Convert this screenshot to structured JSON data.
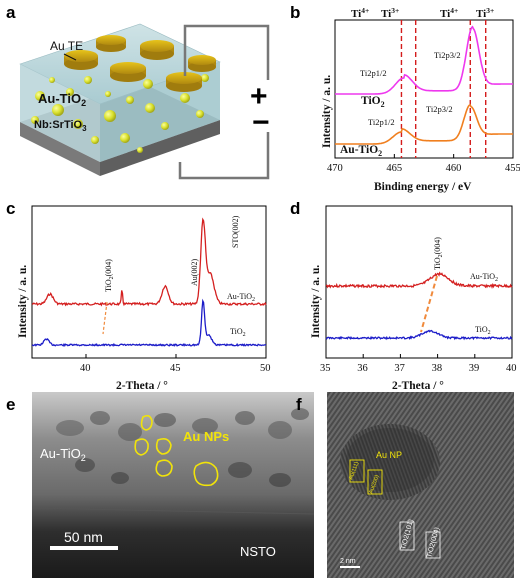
{
  "panels": {
    "a": {
      "letter": "a",
      "au_te_label": "Au TE",
      "au_tio2_label": "Au-TiO",
      "au_tio2_sub": "2",
      "substrate_label": "Nb:SrTiO",
      "substrate_sub": "3",
      "plus": "+",
      "minus": "−"
    },
    "b": {
      "letter": "b",
      "xlabel": "Binding energy / eV",
      "ylabel": "Intensity / a. u.",
      "ti_labels": [
        "Ti",
        "Ti",
        "Ti",
        "Ti"
      ],
      "ti_sup": [
        "4+",
        "3+",
        "4+",
        "3+"
      ],
      "peak_labels_top": [
        "Ti2p1/2",
        "Ti2p3/2"
      ],
      "peak_labels_bottom": [
        "Ti2p1/2",
        "Ti2p3/2"
      ],
      "series_top": "TiO",
      "series_bottom": "Au-TiO",
      "sub2": "2",
      "xticks": [
        "470",
        "465",
        "460",
        "455"
      ]
    },
    "c": {
      "letter": "c",
      "xlabel": "2-Theta / °",
      "ylabel": "Intensity / a. u.",
      "peak_tio2": "TiO",
      "peak_tio2_tail": "(004)",
      "peak_au": "Au(002)",
      "peak_sto": "STO(002)",
      "series_au": "Au-TiO",
      "series_tio2": "TiO",
      "sub2": "2",
      "xticks": [
        "40",
        "45",
        "50"
      ]
    },
    "d": {
      "letter": "d",
      "xlabel": "2-Theta / °",
      "ylabel": "Intensity / a. u.",
      "peak_tio2": "TiO",
      "peak_tio2_tail": "(004)",
      "series_au": "Au-TiO",
      "series_tio2": "TiO",
      "sub2": "2",
      "xticks": [
        "35",
        "36",
        "37",
        "38",
        "39",
        "40"
      ]
    },
    "e": {
      "letter": "e",
      "film_label": "Au-TiO",
      "sub2": "2",
      "np_label": "Au NPs",
      "scale_label": "50 nm",
      "substrate_label": "NSTO"
    },
    "f": {
      "letter": "f",
      "np_label": "Au NP",
      "scale_label": "2 nm",
      "lattice_labels": [
        "Au(111)",
        "Au(200)",
        "TiO2(101)",
        "TiO2(004)"
      ]
    }
  },
  "chart_data": [
    {
      "type": "line",
      "panel": "b",
      "xlabel": "Binding energy / eV",
      "ylabel": "Intensity / a. u.",
      "xlim": [
        470,
        455
      ],
      "reference_lines": [
        {
          "label": "Ti4+",
          "x": 464.4
        },
        {
          "label": "Ti3+",
          "x": 463.2
        },
        {
          "label": "Ti4+",
          "x": 458.6
        },
        {
          "label": "Ti3+",
          "x": 457.3
        }
      ],
      "series": [
        {
          "name": "TiO2",
          "color": "#ee38ee",
          "peaks": [
            {
              "label": "Ti2p1/2",
              "x": 464.2
            },
            {
              "label": "Ti2p3/2",
              "x": 458.4
            }
          ]
        },
        {
          "name": "Au-TiO2",
          "color": "#f07f1f",
          "peaks": [
            {
              "label": "Ti2p1/2",
              "x": 464.4
            },
            {
              "label": "Ti2p3/2",
              "x": 458.6
            }
          ]
        }
      ]
    },
    {
      "type": "line",
      "panel": "c",
      "xlabel": "2-Theta / °",
      "ylabel": "Intensity / a. u.",
      "xlim": [
        37,
        50
      ],
      "series": [
        {
          "name": "Au-TiO2",
          "color": "#d42020",
          "peaks": [
            {
              "label": "TiO2(004)",
              "x": 38.0
            },
            {
              "label": "Au(002)",
              "x": 44.4
            },
            {
              "label": "STO(002)",
              "x": 46.5
            }
          ]
        },
        {
          "name": "TiO2",
          "color": "#1c1cc8",
          "peaks": [
            {
              "label": "TiO2(004)",
              "x": 37.8
            },
            {
              "label": "STO(002)",
              "x": 46.5
            }
          ]
        }
      ]
    },
    {
      "type": "line",
      "panel": "d",
      "xlabel": "2-Theta / °",
      "ylabel": "Intensity / a. u.",
      "xlim": [
        35,
        40
      ],
      "series": [
        {
          "name": "Au-TiO2",
          "color": "#d42020",
          "peaks": [
            {
              "label": "TiO2(004)",
              "x": 38.05
            }
          ]
        },
        {
          "name": "TiO2",
          "color": "#1c1cc8",
          "peaks": [
            {
              "label": "TiO2(004)",
              "x": 37.8
            }
          ]
        }
      ]
    }
  ]
}
